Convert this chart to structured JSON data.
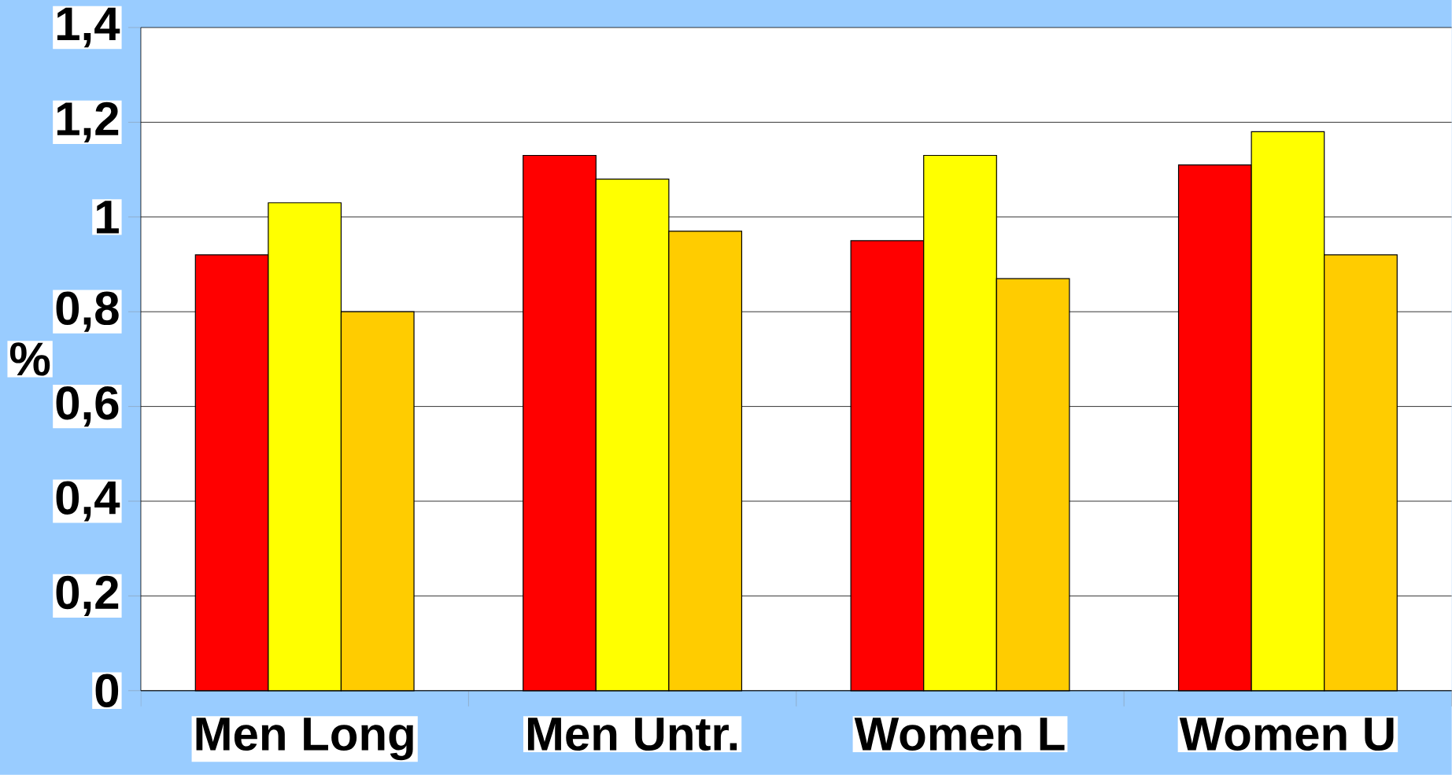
{
  "chart_data": {
    "type": "bar",
    "ylabel": "%",
    "categories": [
      "Men Long",
      "Men Untr.",
      "Women L",
      "Women U"
    ],
    "series": [
      {
        "color": "#ff0000",
        "values": [
          0.92,
          1.13,
          0.95,
          1.11
        ]
      },
      {
        "color": "#ffff00",
        "values": [
          1.03,
          1.08,
          1.13,
          1.18
        ]
      },
      {
        "color": "#ffcc00",
        "values": [
          0.8,
          0.97,
          0.87,
          0.92
        ]
      }
    ],
    "ylim": [
      0,
      1.4
    ],
    "yticks": [
      0,
      {
        "value": 0.2,
        "label": "0,2"
      },
      {
        "value": 0.4,
        "label": "0,4"
      },
      {
        "value": 0.6,
        "label": "0,6"
      },
      {
        "value": 0.8,
        "label": "0,8"
      },
      1,
      {
        "value": 1.2,
        "label": "1,2"
      },
      {
        "value": 1.4,
        "label": "1,4"
      }
    ],
    "grid": "y"
  }
}
